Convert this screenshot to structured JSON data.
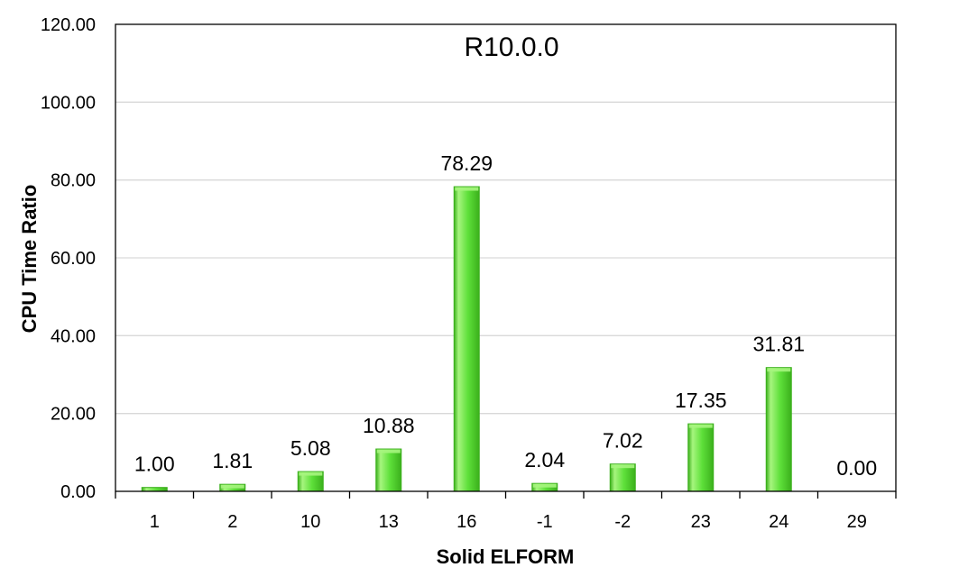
{
  "chart_data": {
    "type": "bar",
    "title": "R10.0.0",
    "xlabel": "Solid ELFORM",
    "ylabel": "CPU Time Ratio",
    "categories": [
      "1",
      "2",
      "10",
      "13",
      "16",
      "-1",
      "-2",
      "23",
      "24",
      "29"
    ],
    "values": [
      1.0,
      1.81,
      5.08,
      10.88,
      78.29,
      2.04,
      7.02,
      17.35,
      31.81,
      0.0
    ],
    "value_labels": [
      "1.00",
      "1.81",
      "5.08",
      "10.88",
      "78.29",
      "2.04",
      "7.02",
      "17.35",
      "31.81",
      "0.00"
    ],
    "ylim": [
      0,
      120
    ],
    "y_ticks": [
      0,
      20,
      40,
      60,
      80,
      100,
      120
    ],
    "y_tick_labels": [
      "0.00",
      "20.00",
      "40.00",
      "60.00",
      "80.00",
      "100.00",
      "120.00"
    ],
    "grid": true,
    "legend": "none",
    "colors": {
      "bar_fill": "#5ee03a",
      "bar_light": "#a6f57e",
      "bar_dark": "#3bb01c",
      "grid": "#d9d9d9",
      "axis": "#000000"
    }
  }
}
